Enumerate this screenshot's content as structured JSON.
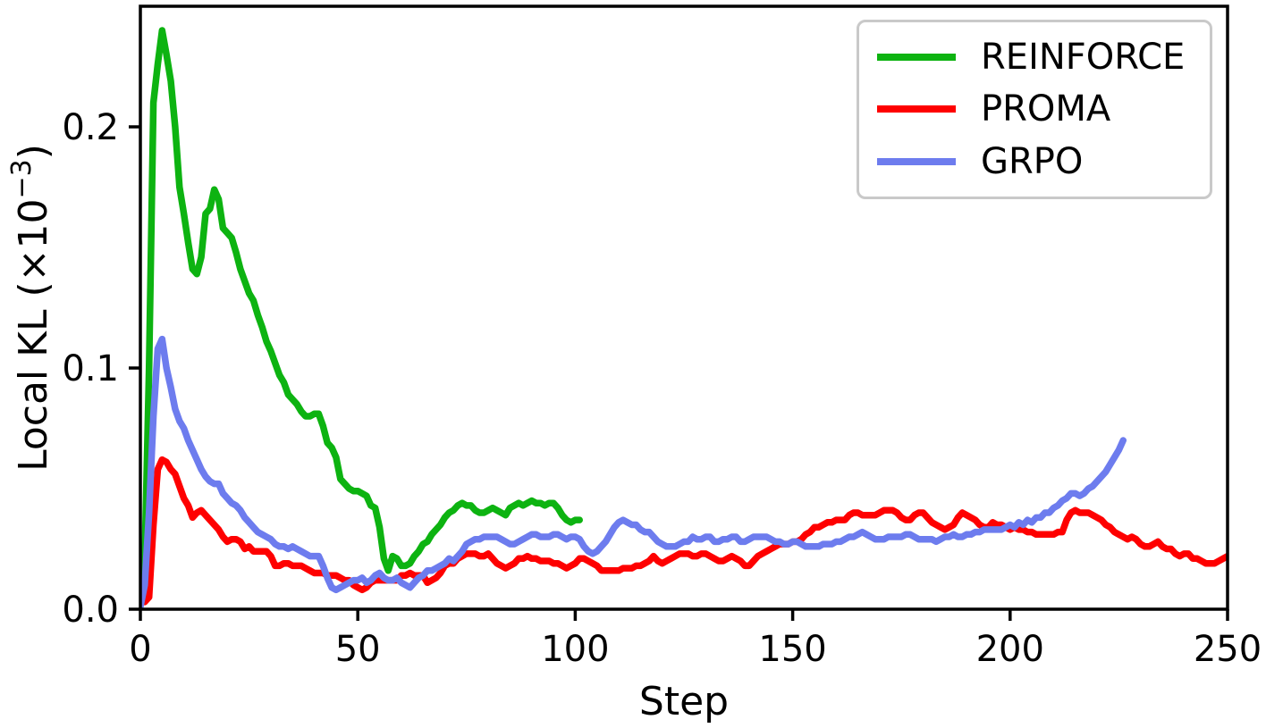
{
  "figure": {
    "background": "#ffffff",
    "axis_color": "#000000",
    "text_color": "#000000"
  },
  "chart_data": {
    "type": "line",
    "title": "",
    "xlabel": "Step",
    "ylabel": "Local KL (×10⁻³)",
    "ylabel_parts": {
      "pre": "Local KL (×10",
      "sup": "−3",
      "post": ")"
    },
    "xlim": [
      0,
      250
    ],
    "ylim": [
      0,
      0.25
    ],
    "x_ticks": [
      0,
      50,
      100,
      150,
      200,
      250
    ],
    "x_tick_labels": [
      "0",
      "50",
      "100",
      "150",
      "200",
      "250"
    ],
    "y_ticks": [
      0.0,
      0.1,
      0.2
    ],
    "y_tick_labels": [
      "0.0",
      "0.1",
      "0.2"
    ],
    "grid": false,
    "legend_position": "upper right",
    "series": [
      {
        "name": "REINFORCE",
        "color": "#0db311",
        "x_start": 0,
        "x_step": 1,
        "y": [
          0.004,
          0.02,
          0.1,
          0.21,
          0.226,
          0.24,
          0.23,
          0.219,
          0.2,
          0.175,
          0.164,
          0.152,
          0.141,
          0.139,
          0.146,
          0.164,
          0.166,
          0.174,
          0.17,
          0.158,
          0.156,
          0.154,
          0.148,
          0.141,
          0.136,
          0.131,
          0.128,
          0.122,
          0.117,
          0.111,
          0.107,
          0.102,
          0.097,
          0.094,
          0.089,
          0.087,
          0.085,
          0.082,
          0.08,
          0.08,
          0.081,
          0.081,
          0.076,
          0.069,
          0.067,
          0.063,
          0.054,
          0.052,
          0.05,
          0.049,
          0.049,
          0.048,
          0.047,
          0.043,
          0.042,
          0.034,
          0.021,
          0.016,
          0.022,
          0.021,
          0.018,
          0.018,
          0.019,
          0.022,
          0.024,
          0.027,
          0.028,
          0.031,
          0.033,
          0.035,
          0.038,
          0.04,
          0.041,
          0.043,
          0.044,
          0.043,
          0.043,
          0.041,
          0.04,
          0.04,
          0.041,
          0.042,
          0.041,
          0.04,
          0.039,
          0.042,
          0.043,
          0.044,
          0.043,
          0.044,
          0.045,
          0.044,
          0.044,
          0.043,
          0.044,
          0.044,
          0.042,
          0.039,
          0.037,
          0.036,
          0.037,
          0.037
        ]
      },
      {
        "name": "PROMA",
        "color": "#fe0000",
        "x_start": 0,
        "x_step": 1,
        "y": [
          0.012,
          0.003,
          0.005,
          0.035,
          0.058,
          0.062,
          0.061,
          0.058,
          0.056,
          0.051,
          0.046,
          0.043,
          0.038,
          0.04,
          0.041,
          0.039,
          0.037,
          0.035,
          0.033,
          0.03,
          0.028,
          0.029,
          0.029,
          0.028,
          0.025,
          0.026,
          0.024,
          0.024,
          0.024,
          0.024,
          0.022,
          0.018,
          0.018,
          0.019,
          0.019,
          0.018,
          0.018,
          0.018,
          0.017,
          0.016,
          0.015,
          0.015,
          0.015,
          0.014,
          0.014,
          0.014,
          0.013,
          0.012,
          0.012,
          0.01,
          0.009,
          0.008,
          0.009,
          0.011,
          0.012,
          0.012,
          0.012,
          0.012,
          0.012,
          0.012,
          0.014,
          0.014,
          0.015,
          0.014,
          0.014,
          0.014,
          0.011,
          0.012,
          0.013,
          0.015,
          0.018,
          0.019,
          0.019,
          0.021,
          0.022,
          0.023,
          0.023,
          0.023,
          0.022,
          0.022,
          0.023,
          0.021,
          0.019,
          0.018,
          0.017,
          0.018,
          0.019,
          0.021,
          0.021,
          0.022,
          0.021,
          0.021,
          0.02,
          0.02,
          0.02,
          0.019,
          0.019,
          0.018,
          0.017,
          0.018,
          0.019,
          0.021,
          0.021,
          0.02,
          0.019,
          0.018,
          0.016,
          0.016,
          0.016,
          0.016,
          0.016,
          0.017,
          0.017,
          0.017,
          0.018,
          0.018,
          0.019,
          0.02,
          0.022,
          0.02,
          0.019,
          0.02,
          0.021,
          0.022,
          0.023,
          0.023,
          0.023,
          0.022,
          0.022,
          0.023,
          0.023,
          0.022,
          0.021,
          0.02,
          0.02,
          0.021,
          0.022,
          0.021,
          0.02,
          0.018,
          0.018,
          0.02,
          0.022,
          0.023,
          0.024,
          0.025,
          0.026,
          0.027,
          0.027,
          0.027,
          0.028,
          0.028,
          0.029,
          0.031,
          0.032,
          0.034,
          0.034,
          0.035,
          0.036,
          0.036,
          0.037,
          0.037,
          0.037,
          0.039,
          0.04,
          0.04,
          0.039,
          0.039,
          0.039,
          0.039,
          0.04,
          0.041,
          0.041,
          0.041,
          0.04,
          0.038,
          0.037,
          0.037,
          0.039,
          0.04,
          0.04,
          0.038,
          0.036,
          0.035,
          0.034,
          0.033,
          0.034,
          0.035,
          0.038,
          0.04,
          0.039,
          0.038,
          0.037,
          0.035,
          0.034,
          0.034,
          0.036,
          0.035,
          0.035,
          0.034,
          0.033,
          0.034,
          0.033,
          0.033,
          0.032,
          0.032,
          0.031,
          0.031,
          0.031,
          0.031,
          0.031,
          0.032,
          0.032,
          0.037,
          0.04,
          0.041,
          0.04,
          0.04,
          0.04,
          0.039,
          0.038,
          0.037,
          0.035,
          0.034,
          0.032,
          0.031,
          0.03,
          0.029,
          0.03,
          0.029,
          0.027,
          0.026,
          0.026,
          0.027,
          0.028,
          0.026,
          0.025,
          0.025,
          0.023,
          0.022,
          0.023,
          0.023,
          0.021,
          0.021,
          0.02,
          0.019,
          0.019,
          0.019,
          0.02,
          0.021,
          0.022
        ]
      },
      {
        "name": "GRPO",
        "color": "#6d7cee",
        "x_start": 0,
        "x_step": 1,
        "y": [
          0.001,
          0.01,
          0.04,
          0.08,
          0.108,
          0.112,
          0.1,
          0.092,
          0.083,
          0.078,
          0.075,
          0.07,
          0.066,
          0.062,
          0.058,
          0.055,
          0.053,
          0.052,
          0.052,
          0.048,
          0.046,
          0.044,
          0.043,
          0.041,
          0.038,
          0.036,
          0.034,
          0.032,
          0.031,
          0.03,
          0.029,
          0.027,
          0.026,
          0.026,
          0.025,
          0.026,
          0.025,
          0.024,
          0.023,
          0.022,
          0.022,
          0.022,
          0.018,
          0.013,
          0.009,
          0.008,
          0.009,
          0.01,
          0.011,
          0.012,
          0.012,
          0.013,
          0.011,
          0.012,
          0.014,
          0.015,
          0.013,
          0.012,
          0.012,
          0.013,
          0.011,
          0.01,
          0.009,
          0.011,
          0.013,
          0.014,
          0.016,
          0.016,
          0.017,
          0.018,
          0.019,
          0.021,
          0.02,
          0.022,
          0.024,
          0.027,
          0.028,
          0.029,
          0.029,
          0.03,
          0.03,
          0.03,
          0.03,
          0.029,
          0.028,
          0.027,
          0.027,
          0.028,
          0.029,
          0.03,
          0.031,
          0.031,
          0.03,
          0.03,
          0.03,
          0.031,
          0.031,
          0.03,
          0.029,
          0.03,
          0.03,
          0.029,
          0.026,
          0.024,
          0.023,
          0.024,
          0.026,
          0.028,
          0.031,
          0.034,
          0.036,
          0.037,
          0.036,
          0.035,
          0.035,
          0.033,
          0.032,
          0.032,
          0.03,
          0.028,
          0.027,
          0.026,
          0.026,
          0.026,
          0.027,
          0.028,
          0.028,
          0.03,
          0.029,
          0.029,
          0.03,
          0.03,
          0.028,
          0.028,
          0.029,
          0.029,
          0.03,
          0.03,
          0.028,
          0.028,
          0.029,
          0.03,
          0.03,
          0.03,
          0.03,
          0.029,
          0.028,
          0.028,
          0.027,
          0.027,
          0.028,
          0.028,
          0.027,
          0.026,
          0.026,
          0.026,
          0.026,
          0.027,
          0.027,
          0.027,
          0.028,
          0.028,
          0.029,
          0.03,
          0.03,
          0.031,
          0.032,
          0.031,
          0.03,
          0.029,
          0.029,
          0.029,
          0.03,
          0.03,
          0.03,
          0.03,
          0.031,
          0.031,
          0.03,
          0.029,
          0.029,
          0.029,
          0.029,
          0.028,
          0.029,
          0.03,
          0.03,
          0.031,
          0.03,
          0.03,
          0.031,
          0.031,
          0.032,
          0.032,
          0.033,
          0.033,
          0.033,
          0.033,
          0.033,
          0.034,
          0.035,
          0.034,
          0.036,
          0.035,
          0.037,
          0.036,
          0.038,
          0.038,
          0.04,
          0.04,
          0.042,
          0.043,
          0.045,
          0.046,
          0.048,
          0.048,
          0.047,
          0.048,
          0.05,
          0.051,
          0.053,
          0.055,
          0.057,
          0.06,
          0.063,
          0.066,
          0.07
        ]
      }
    ]
  }
}
